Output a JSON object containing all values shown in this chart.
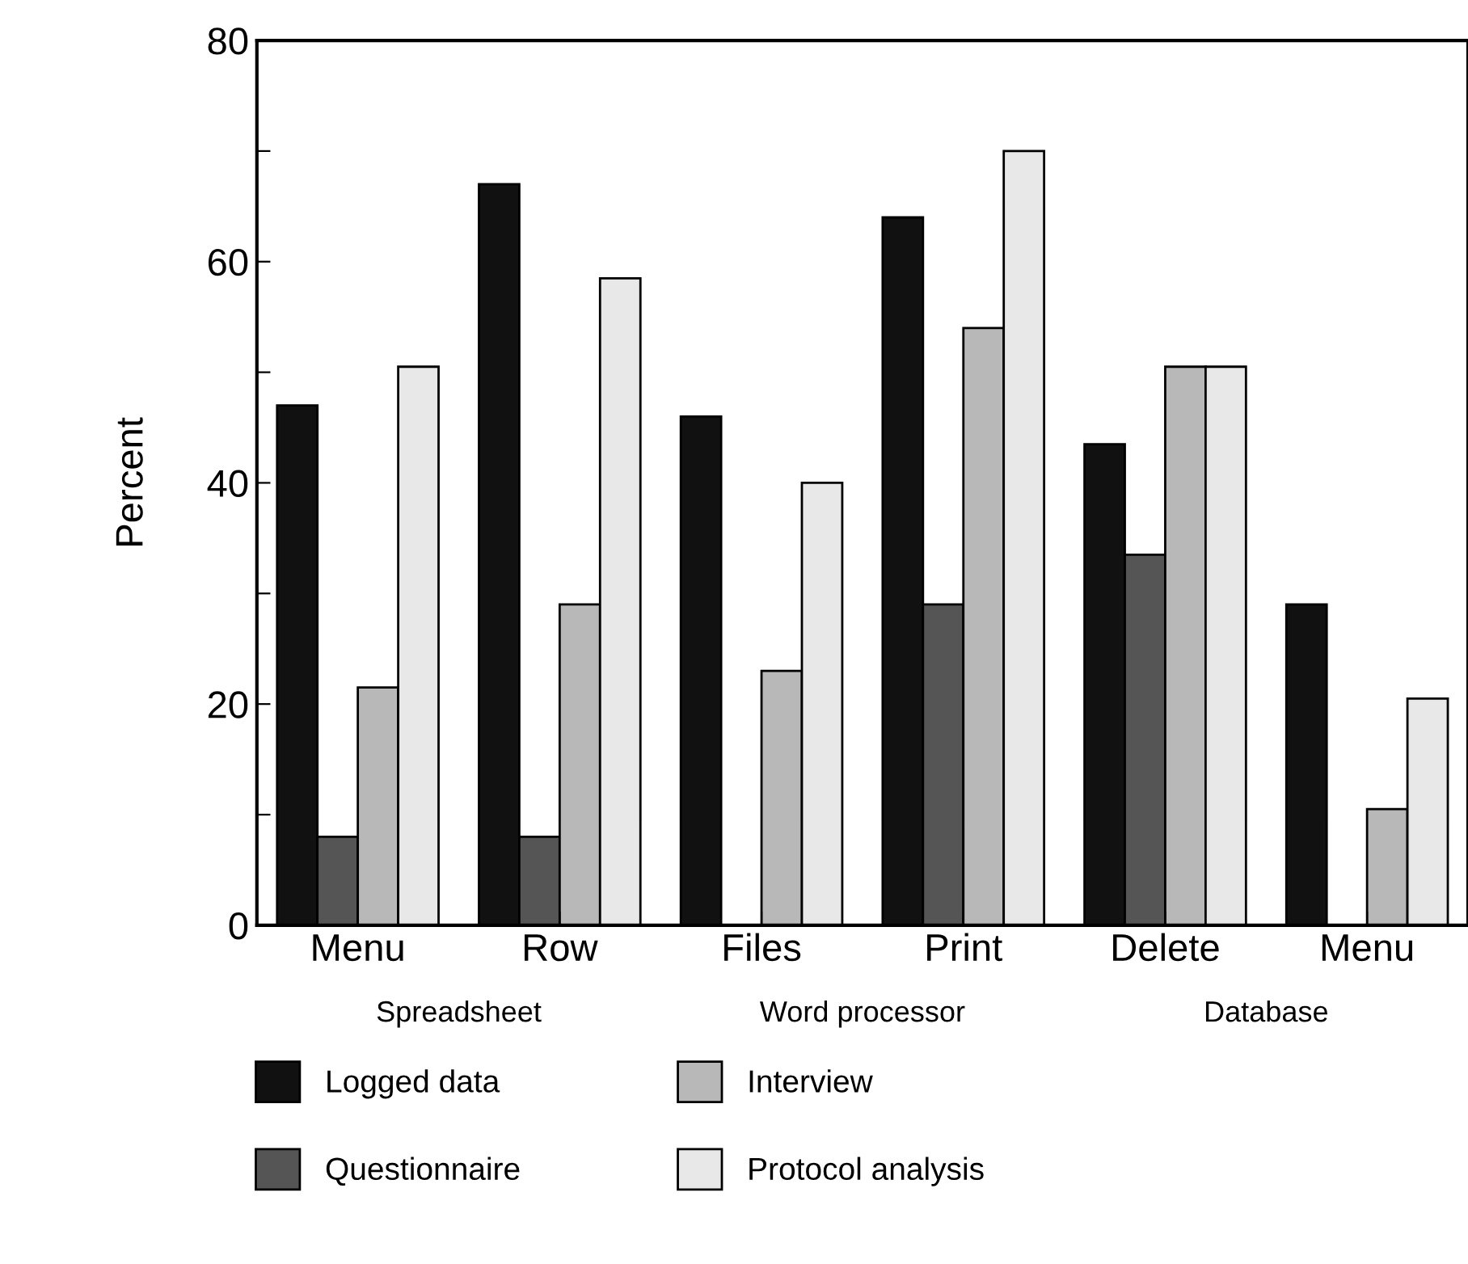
{
  "chart_data": {
    "type": "bar",
    "ylabel": "Percent",
    "categories": [
      "Menu",
      "Row",
      "Files",
      "Print",
      "Delete",
      "Menu"
    ],
    "series": [
      {
        "name": "Logged data",
        "color": "#111111",
        "values": [
          47,
          67,
          46,
          64,
          43.5,
          29
        ]
      },
      {
        "name": "Questionnaire",
        "color": "#555555",
        "values": [
          8,
          8,
          null,
          29,
          33.5,
          null
        ]
      },
      {
        "name": "Interview",
        "color": "#b8b8b8",
        "values": [
          21.5,
          29,
          23,
          54,
          50.5,
          10.5
        ]
      },
      {
        "name": "Protocol analysis",
        "color": "#e8e8e8",
        "values": [
          50.5,
          58.5,
          40,
          70,
          50.5,
          20.5
        ]
      }
    ],
    "ylim": [
      0,
      80
    ],
    "yticks": [
      0,
      {
        "value": 10,
        "label": null
      },
      20,
      {
        "value": 30,
        "label": null
      },
      40,
      {
        "value": 50,
        "label": null
      },
      60,
      {
        "value": 70,
        "label": null
      },
      80
    ],
    "annotations": [
      "Spreadsheet",
      "Word processor",
      "Database"
    ],
    "grid": false,
    "legend": "bottom"
  }
}
